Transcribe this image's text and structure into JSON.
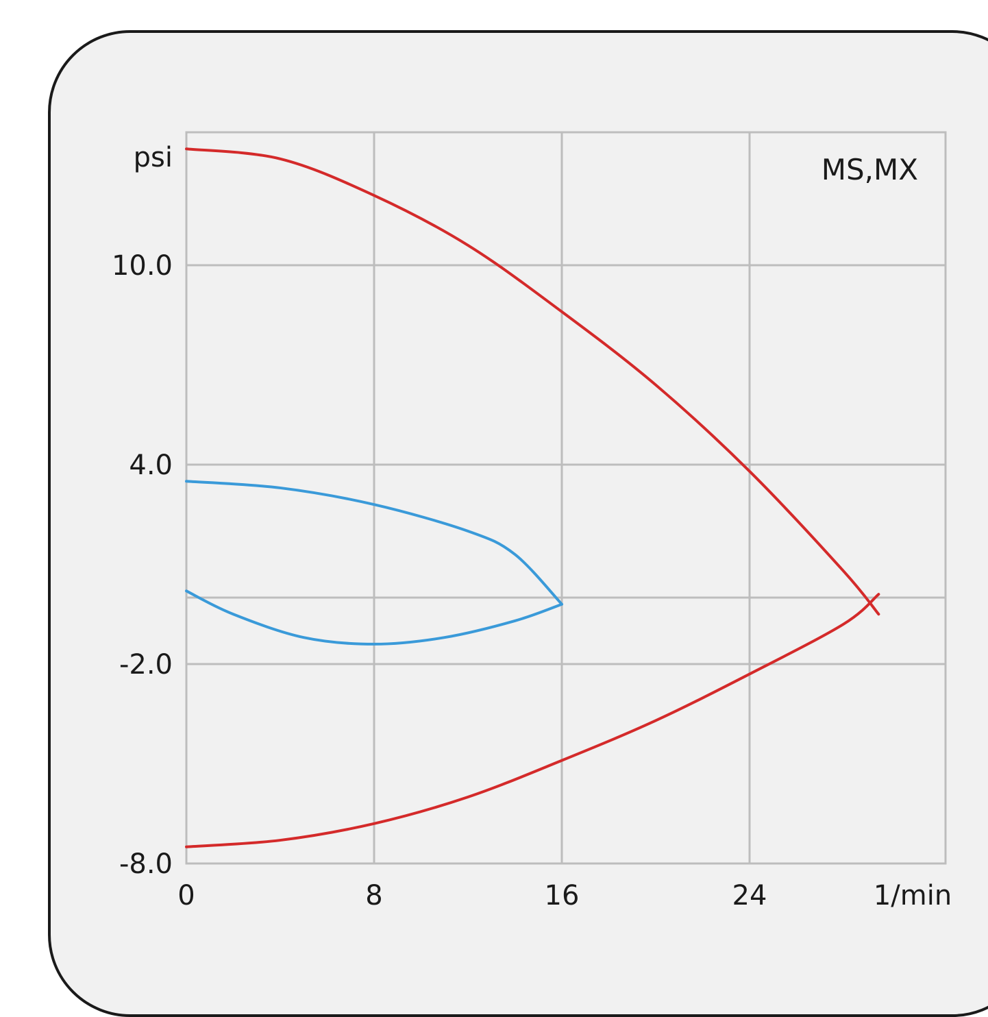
{
  "chart_data": {
    "type": "line",
    "xlabel": "1/min",
    "ylabel": "psi",
    "annotation": "MS,MX",
    "xlim": [
      0,
      32
    ],
    "ylim": [
      -8.0,
      14.0
    ],
    "x_ticks": [
      "0",
      "8",
      "16",
      "24"
    ],
    "y_ticks": [
      {
        "value": 10.0,
        "label": "10.0"
      },
      {
        "value": 4.0,
        "label": "4.0"
      },
      {
        "value": -2.0,
        "label": "-2.0"
      },
      {
        "value": -8.0,
        "label": "-8.0"
      }
    ],
    "grid": true,
    "colors": {
      "red": "#d42a2a",
      "blue": "#3a9ad9",
      "grid": "#bdbdbd",
      "background": "#f1f1f1"
    },
    "series": [
      {
        "color": "#d42a2a",
        "points": [
          [
            0,
            13.5
          ],
          [
            4,
            13.2
          ],
          [
            8,
            12.1
          ],
          [
            12,
            10.6
          ],
          [
            16,
            8.6
          ],
          [
            20,
            6.4
          ],
          [
            24,
            3.8
          ],
          [
            28,
            0.8
          ],
          [
            29.5,
            -0.5
          ]
        ]
      },
      {
        "color": "#d42a2a",
        "points": [
          [
            0,
            -7.5
          ],
          [
            4,
            -7.3
          ],
          [
            8,
            -6.8
          ],
          [
            12,
            -6.0
          ],
          [
            16,
            -4.9
          ],
          [
            20,
            -3.7
          ],
          [
            24,
            -2.3
          ],
          [
            28,
            -0.8
          ],
          [
            29.5,
            0.1
          ]
        ]
      },
      {
        "color": "#3a9ad9",
        "points": [
          [
            0,
            3.5
          ],
          [
            4,
            3.3
          ],
          [
            8,
            2.8
          ],
          [
            12,
            2.0
          ],
          [
            14,
            1.3
          ],
          [
            16,
            -0.2
          ]
        ]
      },
      {
        "color": "#3a9ad9",
        "points": [
          [
            0,
            0.2
          ],
          [
            2,
            -0.5
          ],
          [
            5,
            -1.2
          ],
          [
            8,
            -1.4
          ],
          [
            11,
            -1.2
          ],
          [
            14,
            -0.7
          ],
          [
            16,
            -0.2
          ]
        ]
      }
    ]
  }
}
